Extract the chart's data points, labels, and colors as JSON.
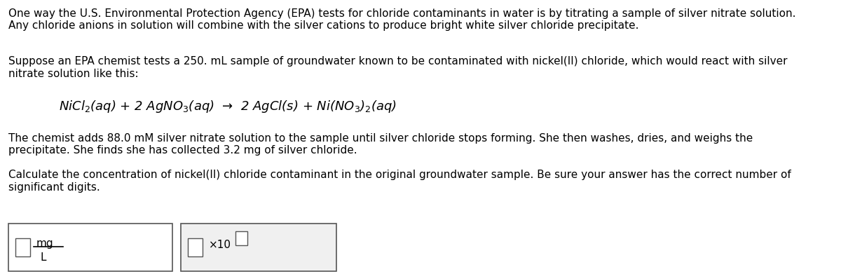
{
  "bg_color": "#ffffff",
  "text_color": "#000000",
  "para1": "One way the U.S. Environmental Protection Agency (EPA) tests for chloride contaminants in water is by titrating a sample of silver nitrate solution.\nAny chloride anions in solution will combine with the silver cations to produce bright white silver chloride precipitate.",
  "para2": "Suppose an EPA chemist tests a 250. mL sample of groundwater known to be contaminated with nickel(II) chloride, which would react with silver\nnitrate solution like this:",
  "equation": "NiCl$_2$(aq) + 2 AgNO$_3$(aq)  →  2 AgCl(s) + Ni(NO$_3$)$_2$(aq)",
  "para3": "The chemist adds 88.0 mМ silver nitrate solution to the sample until silver chloride stops forming. She then washes, dries, and weighs the\nprecipitate. She finds she has collected 3.2 mg of silver chloride.",
  "para4": "Calculate the concentration of nickel(II) chloride contaminant in the original groundwater sample. Be sure your answer has the correct number of\nsignificant digits.",
  "box1_unit_num": "mg",
  "box1_unit_den": "L",
  "box2_label": "×10",
  "font_size_body": 11,
  "font_size_eq": 13
}
